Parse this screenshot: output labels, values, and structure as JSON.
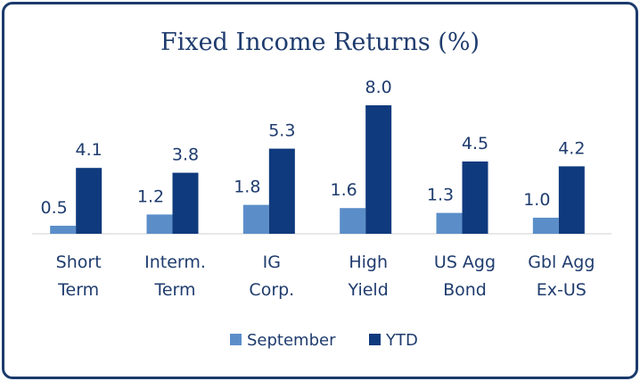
{
  "chart_data": {
    "type": "bar",
    "title": "Fixed Income Returns (%)",
    "categories": [
      [
        "Short",
        "Term"
      ],
      [
        "Interm.",
        "Term"
      ],
      [
        "IG",
        "Corp."
      ],
      [
        "High",
        "Yield"
      ],
      [
        "US Agg",
        "Bond"
      ],
      [
        "Gbl Agg",
        "Ex-US"
      ]
    ],
    "series": [
      {
        "name": "September",
        "values": [
          0.5,
          1.2,
          1.8,
          1.6,
          1.3,
          1.0
        ],
        "labels": [
          "0.5",
          "1.2",
          "1.8",
          "1.6",
          "1.3",
          "1.0"
        ],
        "color": "#5b8ec9"
      },
      {
        "name": "YTD",
        "values": [
          4.1,
          3.8,
          5.3,
          8.0,
          4.5,
          4.2
        ],
        "labels": [
          "4.1",
          "3.8",
          "5.3",
          "8.0",
          "4.5",
          "4.2"
        ],
        "color": "#0f3a7d"
      }
    ],
    "ylim": [
      0,
      8.0
    ],
    "grid": false,
    "legend_position": "bottom",
    "border_color": "#1b3a6b",
    "axis_color": "#d0d0d0"
  }
}
